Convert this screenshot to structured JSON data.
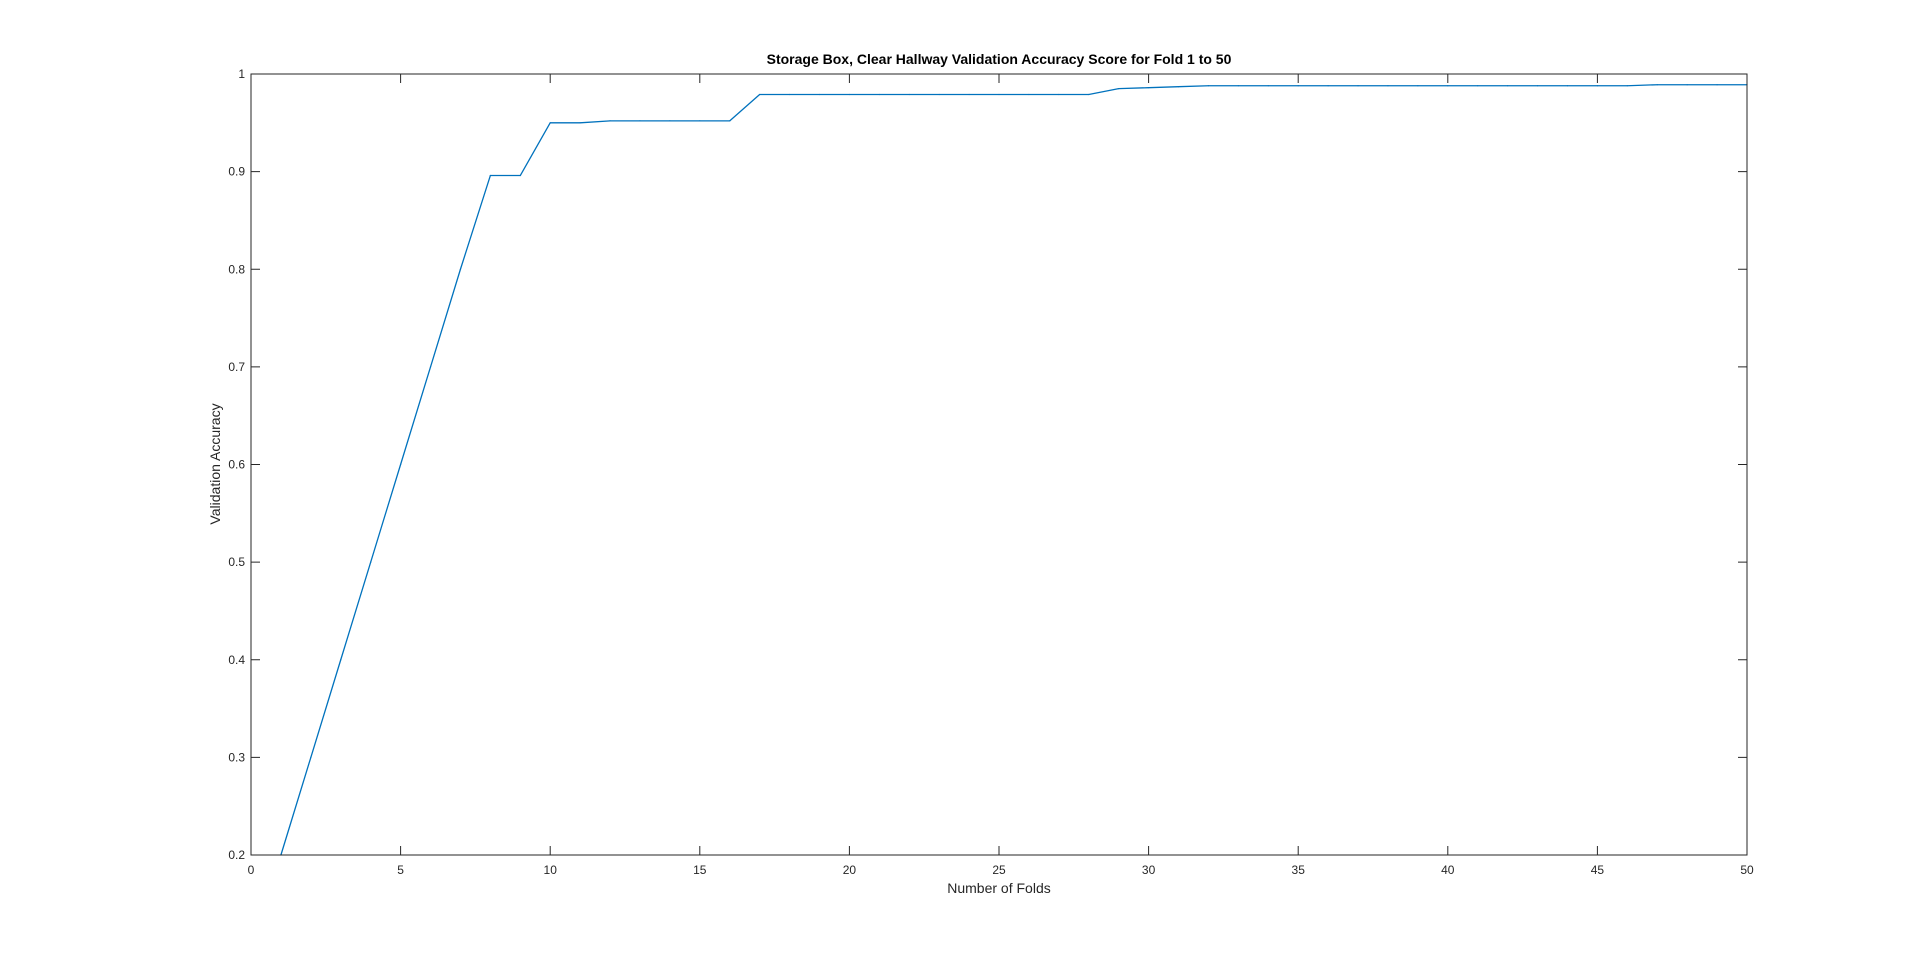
{
  "chart_data": {
    "type": "line",
    "title": "Storage Box, Clear Hallway Validation Accuracy Score for Fold 1 to 50",
    "xlabel": "Number of Folds",
    "ylabel": "Validation Accuracy",
    "xlim": [
      0,
      50
    ],
    "ylim": [
      0.2,
      1
    ],
    "xticks": [
      0,
      5,
      10,
      15,
      20,
      25,
      30,
      35,
      40,
      45,
      50
    ],
    "xtick_labels": [
      "0",
      "5",
      "10",
      "15",
      "20",
      "25",
      "30",
      "35",
      "40",
      "45",
      "50"
    ],
    "yticks": [
      0.2,
      0.3,
      0.4,
      0.5,
      0.6,
      0.7,
      0.8,
      0.9,
      1
    ],
    "ytick_labels": [
      "0.2",
      "0.3",
      "0.4",
      "0.5",
      "0.6",
      "0.7",
      "0.8",
      "0.9",
      "1"
    ],
    "grid": false,
    "box": true,
    "series": [
      {
        "color": "#0072BD",
        "x": [
          1,
          2,
          3,
          4,
          5,
          6,
          7,
          8,
          9,
          10,
          11,
          12,
          13,
          14,
          15,
          16,
          17,
          18,
          19,
          20,
          21,
          22,
          23,
          24,
          25,
          26,
          27,
          28,
          29,
          30,
          31,
          32,
          33,
          34,
          35,
          36,
          37,
          38,
          39,
          40,
          41,
          42,
          43,
          44,
          45,
          46,
          47,
          48,
          49,
          50
        ],
        "values": [
          0.2,
          0.3,
          0.4,
          0.5,
          0.6,
          0.7,
          0.8,
          0.896,
          0.896,
          0.95,
          0.95,
          0.952,
          0.952,
          0.952,
          0.952,
          0.952,
          0.979,
          0.979,
          0.979,
          0.979,
          0.979,
          0.979,
          0.979,
          0.979,
          0.979,
          0.979,
          0.979,
          0.979,
          0.985,
          0.986,
          0.987,
          0.988,
          0.988,
          0.988,
          0.988,
          0.988,
          0.988,
          0.988,
          0.988,
          0.988,
          0.988,
          0.988,
          0.988,
          0.988,
          0.988,
          0.988,
          0.989,
          0.989,
          0.989,
          0.989
        ]
      }
    ]
  }
}
